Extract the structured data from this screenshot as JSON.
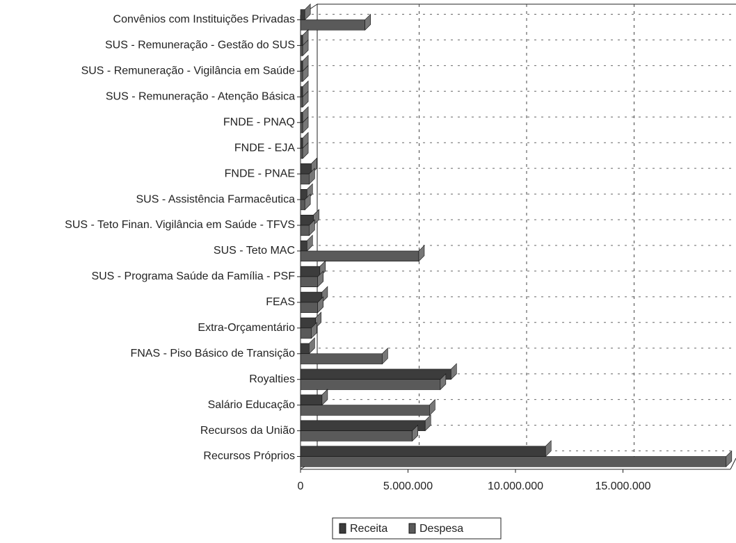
{
  "chart_data": {
    "type": "bar",
    "orientation": "horizontal",
    "categories": [
      "Convênios com Instituições Privadas",
      "SUS - Remuneração - Gestão do SUS",
      "SUS - Remuneração - Vigilância em Saúde",
      "SUS - Remuneração - Atenção Básica",
      "FNDE - PNAQ",
      "FNDE - EJA",
      "FNDE - PNAE",
      "SUS - Assistência Farmacêutica",
      "SUS - Teto Finan. Vigilância em Saúde - TFVS",
      "SUS - Teto MAC",
      "SUS - Programa Saúde da Família - PSF",
      "FEAS",
      "Extra-Orçamentário",
      "FNAS - Piso Básico de Transição",
      "Royalties",
      "Salário Educação",
      "Recursos da União",
      "Recursos Próprios"
    ],
    "series": [
      {
        "name": "Receita",
        "color": "#3c3c3c",
        "values": [
          200000,
          100000,
          100000,
          100000,
          100000,
          100000,
          500000,
          300000,
          600000,
          300000,
          900000,
          1000000,
          700000,
          400000,
          7000000,
          1000000,
          5800000,
          11400000
        ]
      },
      {
        "name": "Despesa",
        "color": "#5a5a5a",
        "values": [
          3000000,
          100000,
          100000,
          100000,
          100000,
          100000,
          400000,
          200000,
          400000,
          5500000,
          800000,
          800000,
          500000,
          3800000,
          6500000,
          6000000,
          5200000,
          19800000
        ]
      }
    ],
    "xlim": [
      0,
      20000000
    ],
    "xticks": [
      0,
      {
        "value": 5000000,
        "label": "5.000.000"
      },
      {
        "value": 10000000,
        "label": "10.000.000"
      },
      {
        "value": 15000000,
        "label": "15.000.000"
      }
    ],
    "grid": true,
    "legend": "bottom"
  }
}
